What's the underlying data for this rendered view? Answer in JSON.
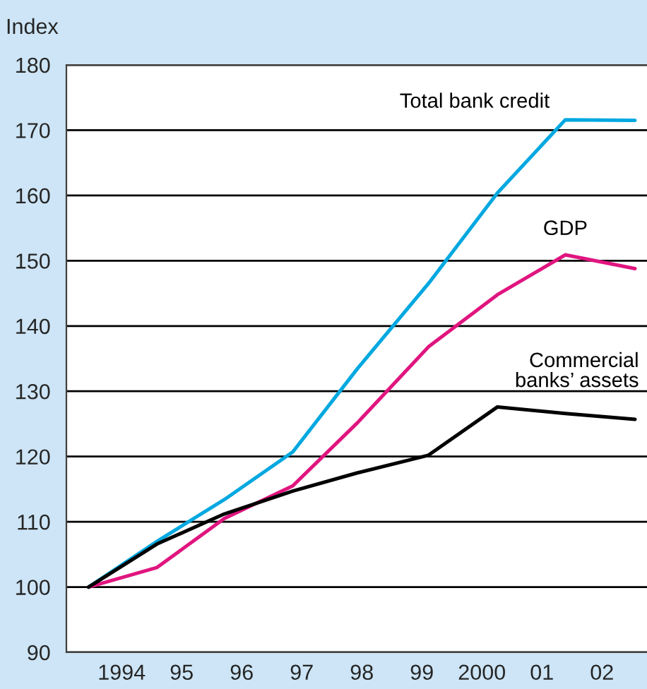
{
  "chart_data": {
    "type": "line",
    "ylabel": "Index",
    "xlim": [
      1993.08,
      2002.75
    ],
    "ylim": [
      90,
      180
    ],
    "xticks": [
      {
        "value": 1994,
        "label": "1994"
      },
      {
        "value": 1995,
        "label": "95"
      },
      {
        "value": 1996,
        "label": "96"
      },
      {
        "value": 1997,
        "label": "97"
      },
      {
        "value": 1998,
        "label": "98"
      },
      {
        "value": 1999,
        "label": "99"
      },
      {
        "value": 2000,
        "label": "2000"
      },
      {
        "value": 2001,
        "label": "01"
      },
      {
        "value": 2002,
        "label": "02"
      }
    ],
    "yticks": [
      90,
      100,
      110,
      120,
      130,
      140,
      150,
      160,
      170,
      180
    ],
    "grid": "y",
    "legend": false,
    "marker": "none",
    "line_style": "solid",
    "x": [
      1993.45,
      1994.59,
      1995.71,
      1996.85,
      1997.93,
      1999.11,
      2000.26,
      2001.39,
      2002.55
    ],
    "series": [
      {
        "name": "Total bank credit",
        "color": "#00a8e0",
        "values": [
          100,
          107,
          113.4,
          120.7,
          133.5,
          146.5,
          160.4,
          171.6,
          171.5
        ]
      },
      {
        "name": "GDP",
        "color": "#e0157f",
        "values": [
          100,
          103.0,
          110.5,
          115.5,
          125.2,
          136.8,
          144.8,
          150.9,
          148.8
        ]
      },
      {
        "name": "Commercial\nbanks’ assets",
        "color": "#000000",
        "values": [
          100,
          106.6,
          111.2,
          114.7,
          117.5,
          120.2,
          127.6,
          126.6,
          125.7
        ]
      }
    ]
  }
}
